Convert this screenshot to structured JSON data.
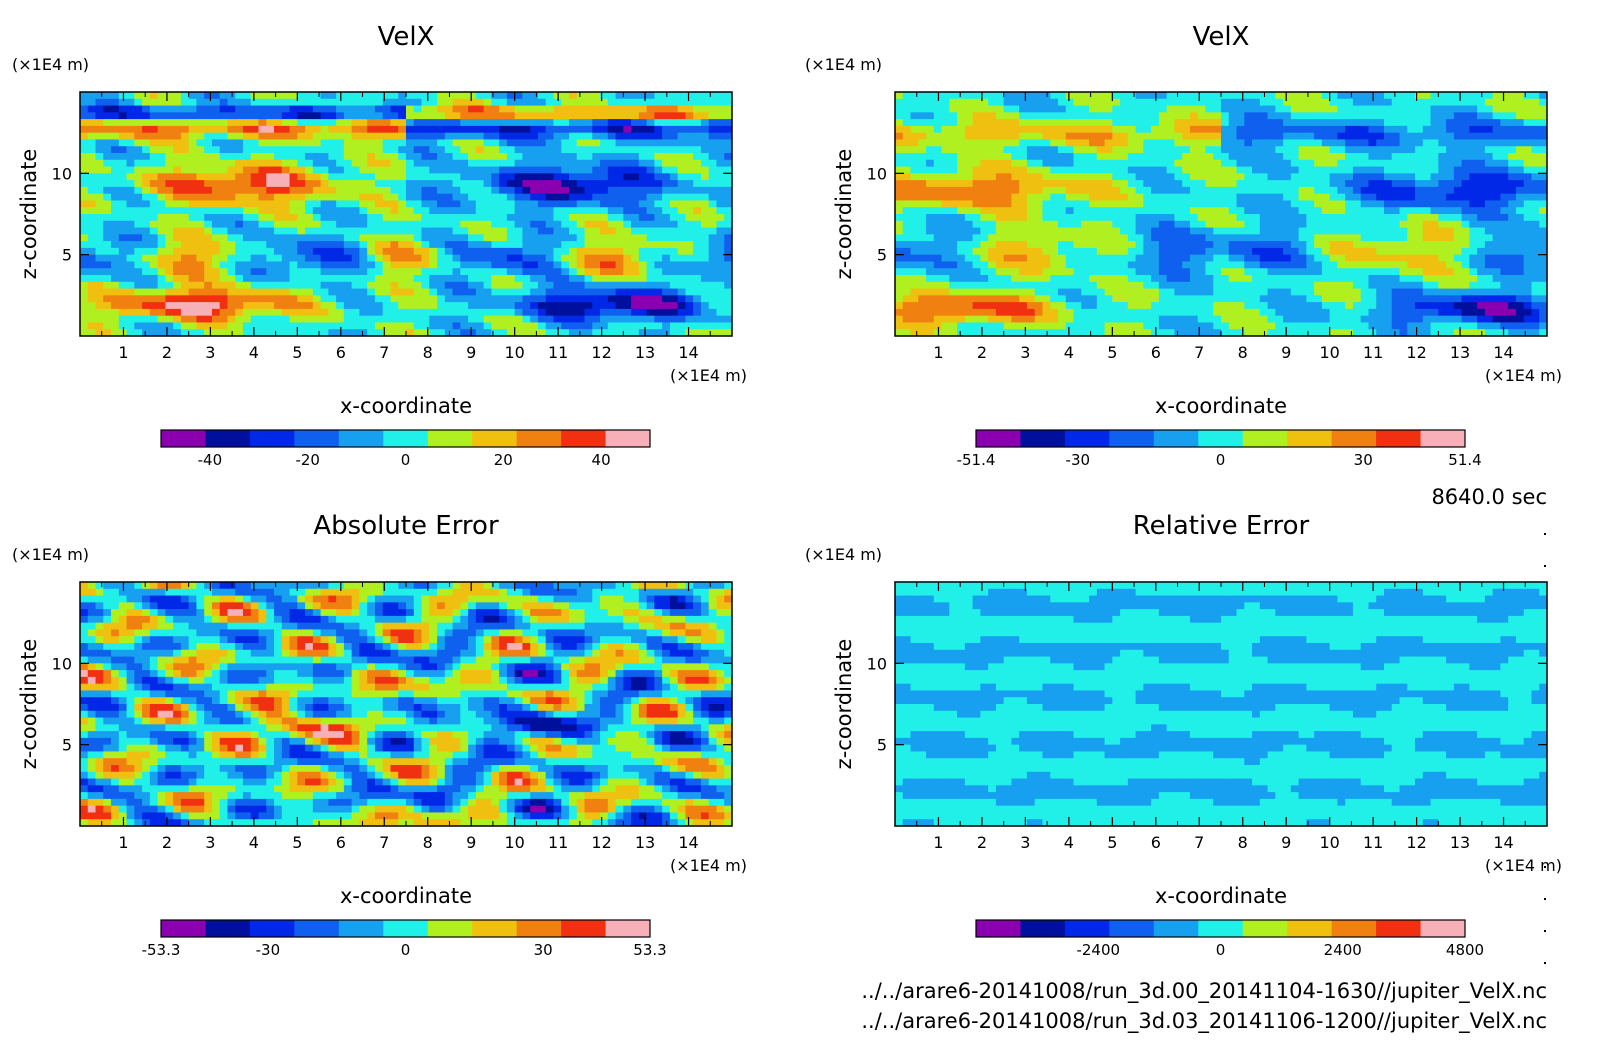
{
  "time_label": "8640.0 sec",
  "files": [
    "../../arare6-20141008/run_3d.00_20141104-1630//jupiter_VelX.nc",
    "../../arare6-20141008/run_3d.03_20141106-1200//jupiter_VelX.nc"
  ],
  "colors": {
    "palette": [
      "#8a00b0",
      "#00109c",
      "#0028e6",
      "#1060f0",
      "#18a0f0",
      "#20f0e8",
      "#b0f020",
      "#f0c010",
      "#f08010",
      "#f03010",
      "#f8b0b8"
    ]
  },
  "chart_data": [
    {
      "type": "heatmap",
      "title": "VelX",
      "xlabel": "x-coordinate",
      "ylabel": "z-coordinate",
      "xunit": "(×1E4 m)",
      "yunit": "(×1E4 m)",
      "xlim": [
        0,
        15
      ],
      "ylim": [
        0,
        15
      ],
      "xticks": [
        "1",
        "2",
        "3",
        "4",
        "5",
        "6",
        "7",
        "8",
        "9",
        "10",
        "11",
        "12",
        "13",
        "14"
      ],
      "yticks": [
        "5",
        "10"
      ],
      "colorbar": {
        "min": -50,
        "max": 50,
        "ticks": [
          "-40",
          "-20",
          "0",
          "20",
          "40"
        ],
        "tick_values": [
          -40,
          -20,
          0,
          20,
          40
        ]
      },
      "pattern_seed": 1
    },
    {
      "type": "heatmap",
      "title": "VelX",
      "xlabel": "x-coordinate",
      "ylabel": "z-coordinate",
      "xunit": "(×1E4 m)",
      "yunit": "(×1E4 m)",
      "xlim": [
        0,
        15
      ],
      "ylim": [
        0,
        15
      ],
      "xticks": [
        "1",
        "2",
        "3",
        "4",
        "5",
        "6",
        "7",
        "8",
        "9",
        "10",
        "11",
        "12",
        "13",
        "14"
      ],
      "yticks": [
        "5",
        "10"
      ],
      "colorbar": {
        "min": -51.4,
        "max": 51.4,
        "ticks": [
          "-51.4",
          "-30",
          "0",
          "30",
          "51.4"
        ],
        "tick_values": [
          -51.4,
          -30,
          0,
          30,
          51.4
        ]
      },
      "pattern_seed": 2
    },
    {
      "type": "heatmap",
      "title": "Absolute Error",
      "xlabel": "x-coordinate",
      "ylabel": "z-coordinate",
      "xunit": "(×1E4 m)",
      "yunit": "(×1E4 m)",
      "xlim": [
        0,
        15
      ],
      "ylim": [
        0,
        15
      ],
      "xticks": [
        "1",
        "2",
        "3",
        "4",
        "5",
        "6",
        "7",
        "8",
        "9",
        "10",
        "11",
        "12",
        "13",
        "14"
      ],
      "yticks": [
        "5",
        "10"
      ],
      "colorbar": {
        "min": -53.3,
        "max": 53.3,
        "ticks": [
          "-53.3",
          "-30",
          "0",
          "30",
          "53.3"
        ],
        "tick_values": [
          -53.3,
          -30,
          0,
          30,
          53.3
        ]
      },
      "pattern_seed": 3
    },
    {
      "type": "heatmap",
      "title": "Relative Error",
      "xlabel": "x-coordinate",
      "ylabel": "z-coordinate",
      "xunit": "(×1E4 m)",
      "yunit": "(×1E4 m)",
      "xlim": [
        0,
        15
      ],
      "ylim": [
        0,
        15
      ],
      "xticks": [
        "1",
        "2",
        "3",
        "4",
        "5",
        "6",
        "7",
        "8",
        "9",
        "10",
        "11",
        "12",
        "13",
        "14"
      ],
      "yticks": [
        "5",
        "10"
      ],
      "colorbar": {
        "min": -4800,
        "max": 4800,
        "ticks": [
          "-2400",
          "0",
          "2400",
          "4800"
        ],
        "tick_values": [
          -2400,
          0,
          2400,
          4800
        ]
      },
      "pattern_seed": 4
    }
  ]
}
